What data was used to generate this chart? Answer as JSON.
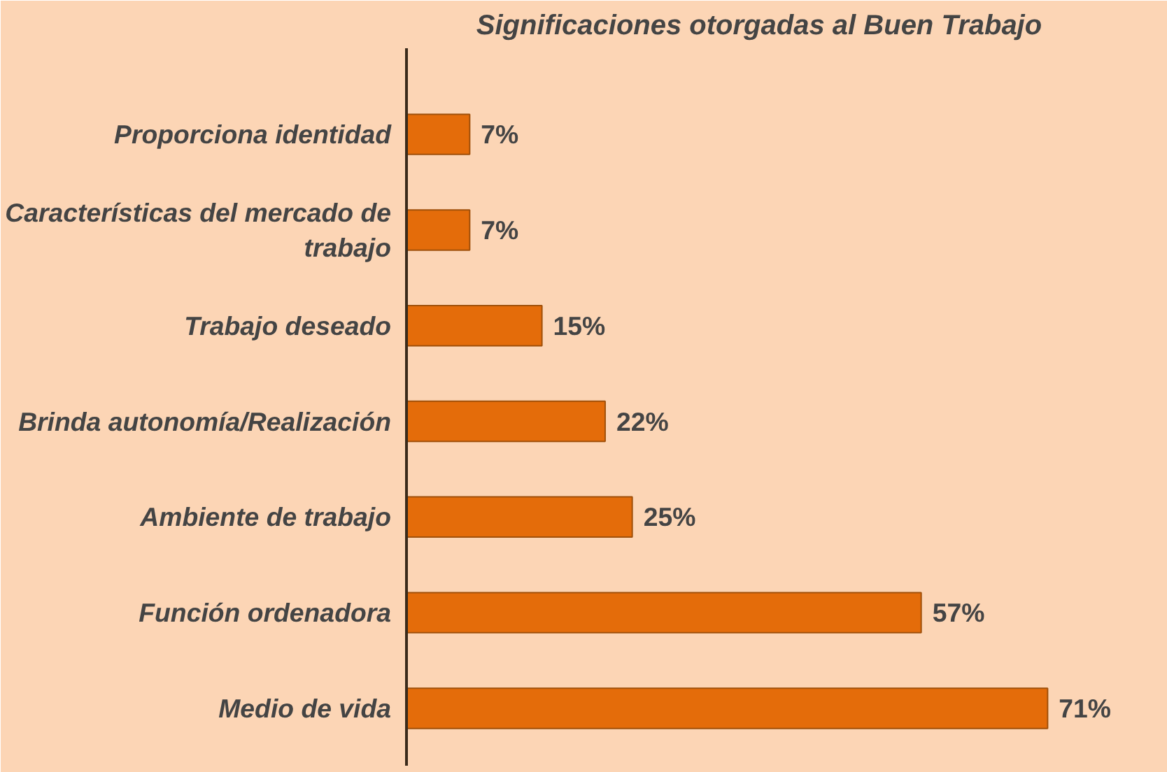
{
  "chart_data": {
    "type": "bar",
    "orientation": "horizontal",
    "title": "Significaciones otorgadas al Buen Trabajo",
    "categories": [
      "Proporciona identidad",
      "Características del mercado de trabajo",
      "Trabajo deseado",
      "Brinda autonomía/Realización",
      "Ambiente de trabajo",
      "Función ordenadora",
      "Medio de vida"
    ],
    "values": [
      7,
      7,
      15,
      22,
      25,
      57,
      71
    ],
    "value_labels": [
      "7%",
      "7%",
      "15%",
      "22%",
      "25%",
      "57%",
      "71%"
    ],
    "color": "#e46c0a",
    "tick_labels": "y",
    "grid": false
  }
}
